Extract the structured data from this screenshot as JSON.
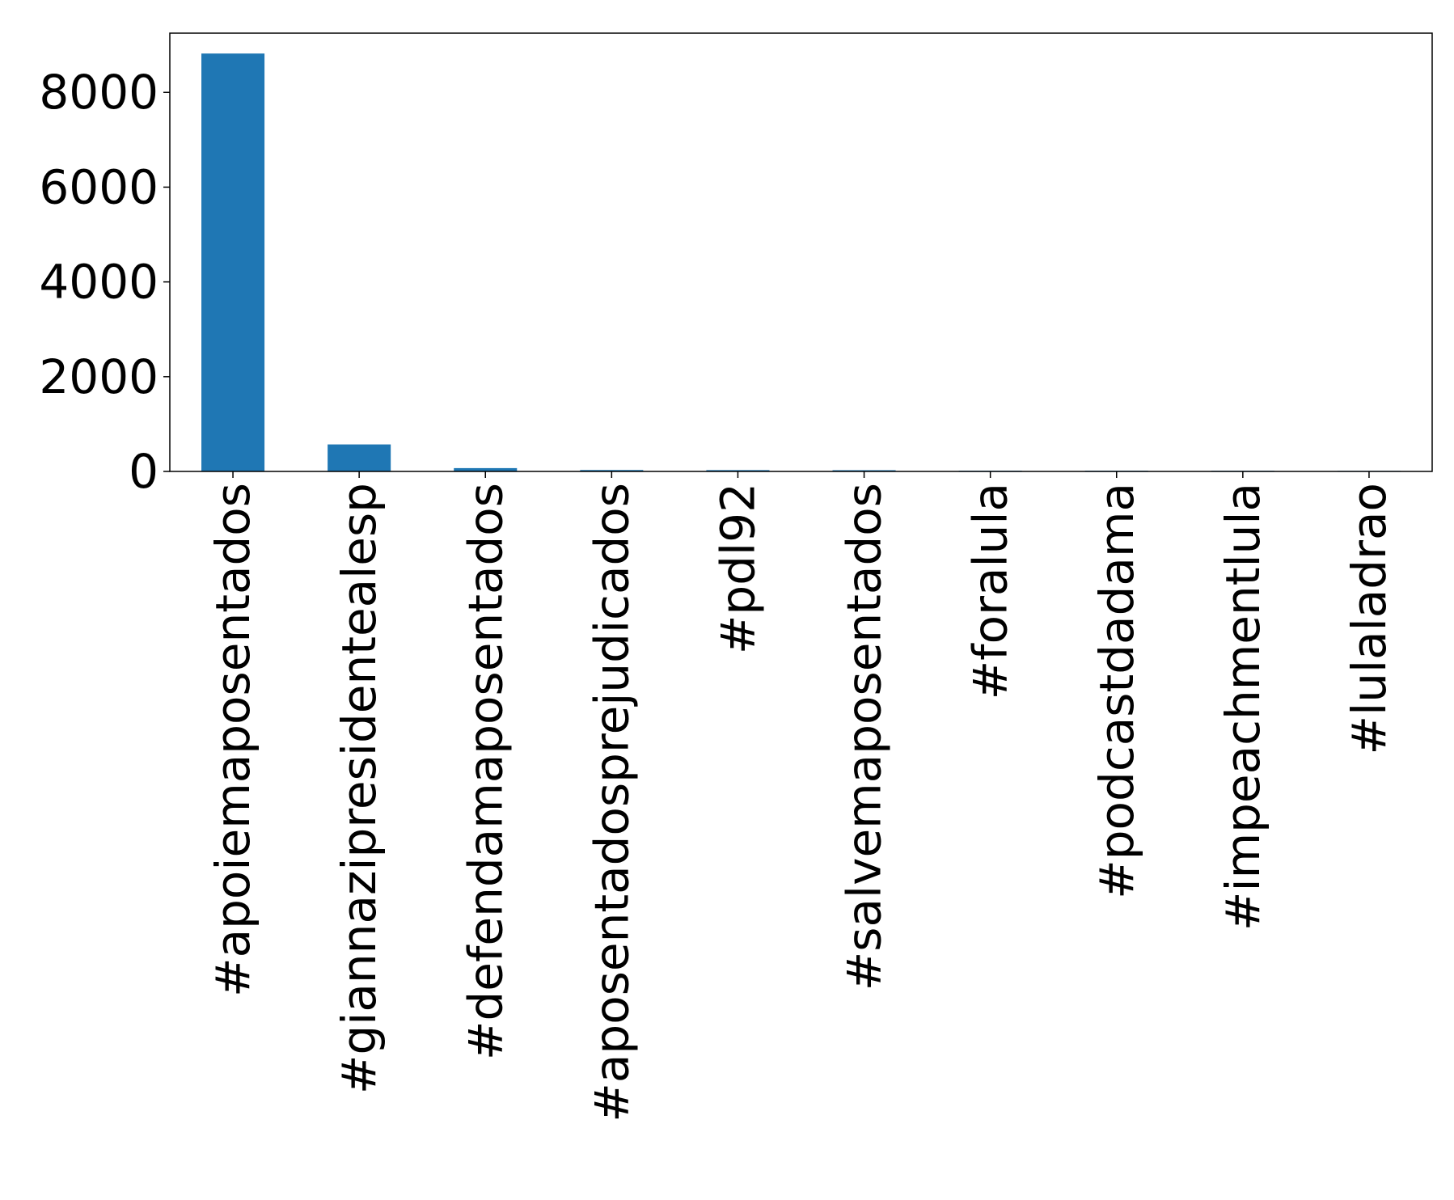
{
  "chart_data": {
    "type": "bar",
    "title": "",
    "xlabel": "",
    "ylabel": "",
    "categories": [
      "#apoiemaposentados",
      "#giannazipresidentealesp",
      "#defendamaposentados",
      "#aposentadosprejudicados",
      "#pdl92",
      "#salvemaposentados",
      "#foralula",
      "#podcastdadama",
      "#impeachmentlula",
      "#lulaladrao"
    ],
    "values": [
      8820,
      570,
      70,
      30,
      28,
      26,
      15,
      15,
      14,
      12
    ],
    "ylim": [
      0,
      9250
    ],
    "yticks": [
      0,
      2000,
      4000,
      6000,
      8000
    ],
    "ytick_labels": [
      "0",
      "2000",
      "4000",
      "6000",
      "8000"
    ],
    "grid": false,
    "legend": "none",
    "colors": {
      "bar": "#1f77b4",
      "axes": "#000000",
      "background": "#ffffff"
    }
  }
}
